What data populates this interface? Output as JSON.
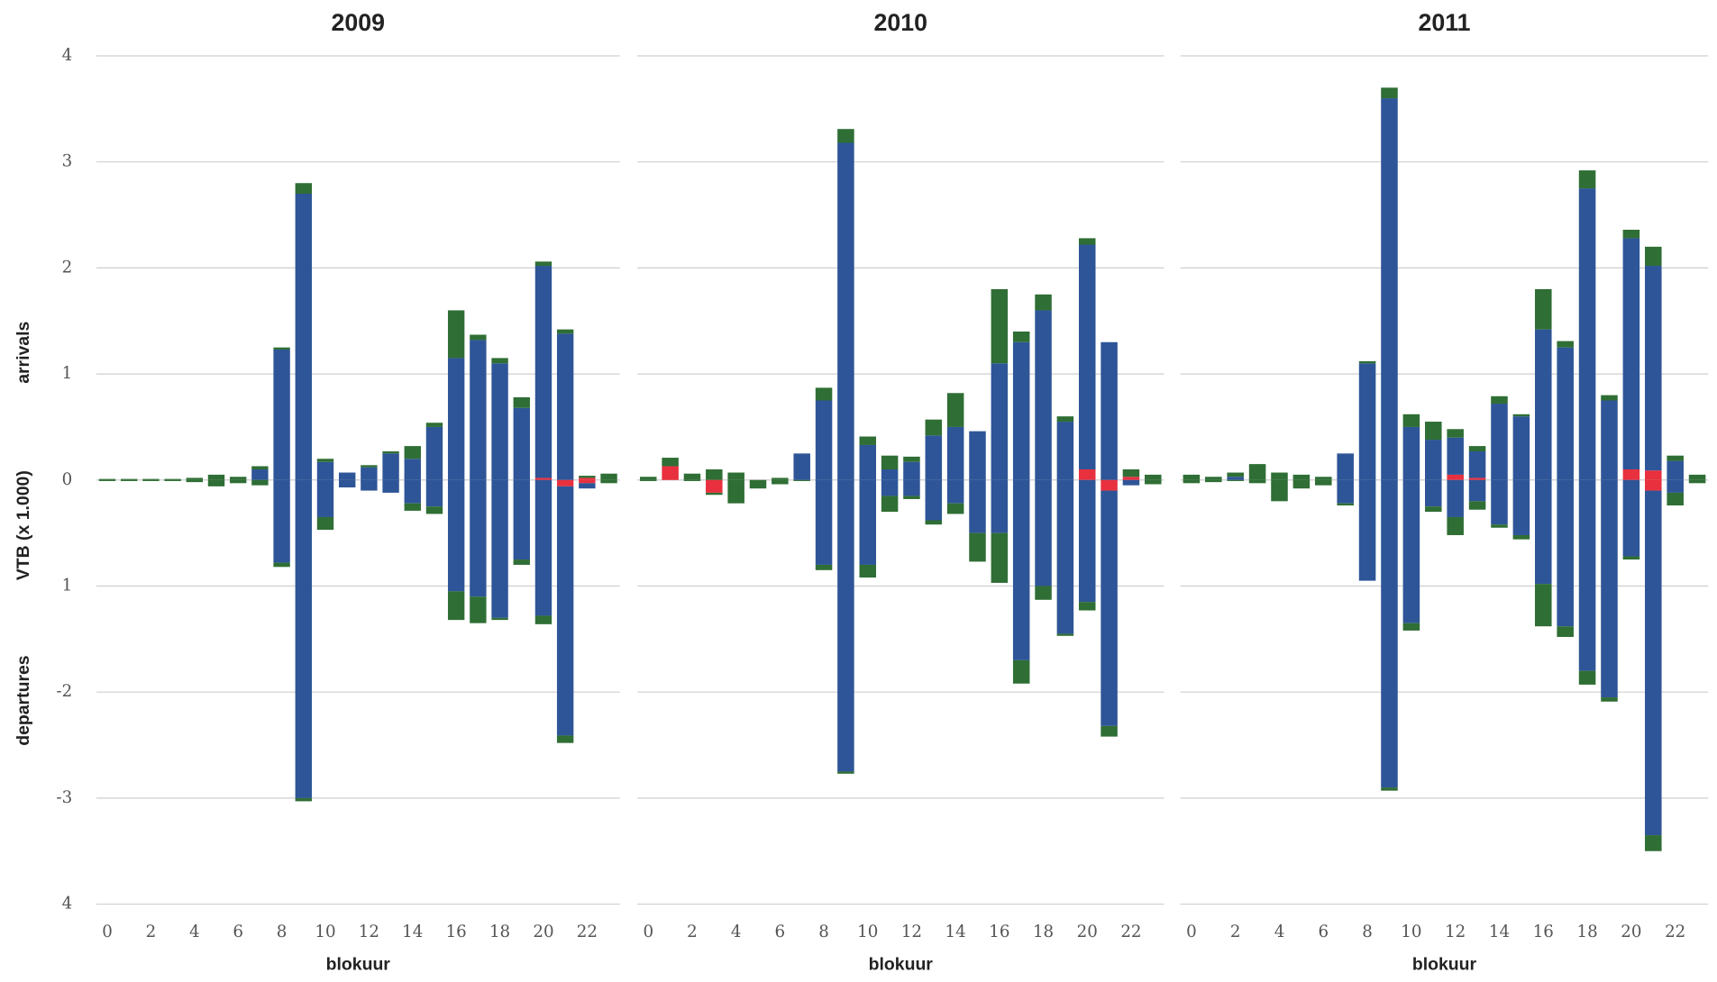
{
  "chart_data": [
    {
      "type": "bar",
      "title": "2009",
      "xlabel": "blokuur",
      "ylabel": "VTB (x 1.000)",
      "annotations": [
        "arrivals",
        "departures"
      ],
      "categories": [
        "0",
        null,
        "2",
        null,
        "4",
        null,
        "6",
        null,
        "8",
        null,
        "10",
        null,
        "12",
        null,
        "14",
        null,
        "16",
        null,
        "18",
        null,
        "20",
        null,
        "22",
        null
      ],
      "ylim": [
        -4,
        4
      ],
      "yticks": [
        4,
        3,
        2,
        1,
        0,
        {
          "value": -1,
          "label": "1"
        },
        -2,
        -3,
        {
          "value": -4,
          "label": "4"
        }
      ],
      "grid": true,
      "series": [
        {
          "color": "#e8303f",
          "values": [
            0,
            0,
            0,
            0,
            0,
            0,
            0,
            0,
            0,
            0,
            0,
            0,
            0,
            0,
            0,
            0,
            0,
            0,
            0,
            0,
            0.02,
            0,
            0.02,
            0
          ]
        },
        {
          "color": "#2e5597",
          "values": [
            0,
            0,
            0,
            0,
            0,
            0,
            0,
            0.1,
            1.23,
            2.7,
            0.17,
            0.07,
            0.12,
            0.25,
            0.2,
            0.5,
            1.15,
            1.32,
            1.1,
            0.68,
            2.0,
            1.38,
            0,
            0
          ]
        },
        {
          "color": "#2f6e35",
          "values": [
            0.01,
            0.01,
            0.01,
            0.01,
            0.02,
            0.05,
            0.03,
            0.03,
            0.02,
            0.1,
            0.03,
            0,
            0.02,
            0.02,
            0.12,
            0.04,
            0.45,
            0.05,
            0.05,
            0.1,
            0.04,
            0.04,
            0.02,
            0.06
          ]
        },
        {
          "color": "#e8303f",
          "values": [
            0,
            0,
            0,
            0,
            0,
            0,
            0,
            0,
            0,
            0,
            0,
            0,
            0,
            0,
            0,
            0,
            0,
            0,
            0,
            0,
            0,
            -0.06,
            -0.03,
            0
          ]
        },
        {
          "color": "#2e5597",
          "values": [
            0,
            0,
            0,
            0,
            0,
            0,
            0,
            0,
            -0.78,
            -3.0,
            -0.35,
            -0.07,
            -0.1,
            -0.12,
            -0.22,
            -0.25,
            -1.05,
            -1.1,
            -1.3,
            -0.75,
            -1.28,
            -2.35,
            -0.05,
            0
          ]
        },
        {
          "color": "#2f6e35",
          "values": [
            -0.01,
            -0.01,
            -0.01,
            -0.01,
            -0.02,
            -0.06,
            -0.03,
            -0.05,
            -0.04,
            -0.03,
            -0.12,
            0,
            0,
            0,
            -0.07,
            -0.07,
            -0.27,
            -0.25,
            -0.02,
            -0.05,
            -0.08,
            -0.07,
            0,
            -0.03
          ]
        }
      ]
    },
    {
      "type": "bar",
      "title": "2010",
      "xlabel": "blokuur",
      "categories": [
        "0",
        null,
        "2",
        null,
        "4",
        null,
        "6",
        null,
        "8",
        null,
        "10",
        null,
        "12",
        null,
        "14",
        null,
        "16",
        null,
        "18",
        null,
        "20",
        null,
        "22",
        null
      ],
      "grid": true,
      "series": [
        {
          "color": "#e8303f",
          "values": [
            0,
            0.13,
            0,
            0,
            0,
            0,
            0,
            0,
            0,
            0,
            0,
            0,
            0,
            0,
            0,
            0,
            0,
            0,
            0,
            0,
            0.1,
            0,
            0.03,
            0
          ]
        },
        {
          "color": "#2e5597",
          "values": [
            0,
            0,
            0,
            0,
            0,
            0,
            0,
            0.25,
            0.75,
            3.18,
            0.33,
            0.1,
            0.17,
            0.42,
            0.5,
            0.46,
            1.1,
            1.3,
            1.6,
            0.55,
            2.12,
            1.3,
            0,
            0
          ]
        },
        {
          "color": "#2f6e35",
          "values": [
            0.03,
            0.08,
            0.06,
            0.1,
            0.07,
            0,
            0.02,
            0,
            0.12,
            0.13,
            0.08,
            0.13,
            0.05,
            0.15,
            0.32,
            0,
            0.7,
            0.1,
            0.15,
            0.05,
            0.06,
            0,
            0.07,
            0.05
          ]
        },
        {
          "color": "#e8303f",
          "values": [
            0,
            0,
            0,
            -0.12,
            0,
            0,
            0,
            0,
            0,
            0,
            0,
            0,
            0,
            0,
            0,
            0,
            0,
            0,
            0,
            0,
            0,
            -0.1,
            0,
            0
          ]
        },
        {
          "color": "#2e5597",
          "values": [
            0,
            0,
            0,
            0,
            0,
            0,
            0,
            0,
            -0.8,
            -2.75,
            -0.8,
            -0.15,
            -0.15,
            -0.38,
            -0.22,
            -0.5,
            -0.5,
            -1.7,
            -1.0,
            -1.45,
            -1.15,
            -2.22,
            -0.05,
            0
          ]
        },
        {
          "color": "#2f6e35",
          "values": [
            -0.01,
            0,
            -0.01,
            -0.02,
            -0.22,
            -0.08,
            -0.04,
            -0.01,
            -0.05,
            -0.02,
            -0.12,
            -0.15,
            -0.03,
            -0.04,
            -0.1,
            -0.27,
            -0.47,
            -0.22,
            -0.13,
            -0.02,
            -0.08,
            -0.1,
            0,
            -0.04
          ]
        }
      ]
    },
    {
      "type": "bar",
      "title": "2011",
      "xlabel": "blokuur",
      "categories": [
        "0",
        null,
        "2",
        null,
        "4",
        null,
        "6",
        null,
        "8",
        null,
        "10",
        null,
        "12",
        null,
        "14",
        null,
        "16",
        null,
        "18",
        null,
        "20",
        null,
        "22",
        null
      ],
      "grid": true,
      "series": [
        {
          "color": "#e8303f",
          "values": [
            0,
            0,
            0,
            0,
            0,
            0,
            0,
            0,
            0,
            0,
            0,
            0,
            0.05,
            0.02,
            0,
            0,
            0,
            0,
            0,
            0,
            0.1,
            0.09,
            0,
            0
          ]
        },
        {
          "color": "#2e5597",
          "values": [
            0,
            0,
            0.03,
            0,
            0,
            0,
            0,
            0.25,
            1.1,
            3.6,
            0.5,
            0.38,
            0.35,
            0.25,
            0.72,
            0.6,
            1.42,
            1.25,
            2.75,
            0.75,
            2.18,
            1.93,
            0.18,
            0
          ]
        },
        {
          "color": "#2f6e35",
          "values": [
            0.05,
            0.03,
            0.04,
            0.15,
            0.07,
            0.05,
            0.03,
            0,
            0.02,
            0.1,
            0.12,
            0.17,
            0.08,
            0.05,
            0.07,
            0.02,
            0.38,
            0.06,
            0.17,
            0.05,
            0.08,
            0.18,
            0.05,
            0.05
          ]
        },
        {
          "color": "#e8303f",
          "values": [
            0,
            0,
            0,
            0,
            0,
            0,
            0,
            0,
            0,
            0,
            0,
            0,
            0,
            0,
            0,
            0,
            0,
            0,
            0,
            0,
            0,
            -0.1,
            0,
            0
          ]
        },
        {
          "color": "#2e5597",
          "values": [
            0,
            0,
            0,
            0,
            0,
            0,
            0,
            -0.22,
            -0.95,
            -2.9,
            -1.35,
            -0.25,
            -0.35,
            -0.2,
            -0.42,
            -0.52,
            -0.98,
            -1.38,
            -1.8,
            -2.05,
            -0.72,
            -3.25,
            -0.12,
            0
          ]
        },
        {
          "color": "#2f6e35",
          "values": [
            -0.03,
            -0.02,
            -0.01,
            -0.03,
            -0.2,
            -0.08,
            -0.05,
            -0.02,
            0,
            -0.03,
            -0.07,
            -0.05,
            -0.17,
            -0.08,
            -0.03,
            -0.04,
            -0.4,
            -0.1,
            -0.13,
            -0.04,
            -0.03,
            -0.15,
            -0.12,
            -0.03
          ]
        }
      ]
    }
  ]
}
